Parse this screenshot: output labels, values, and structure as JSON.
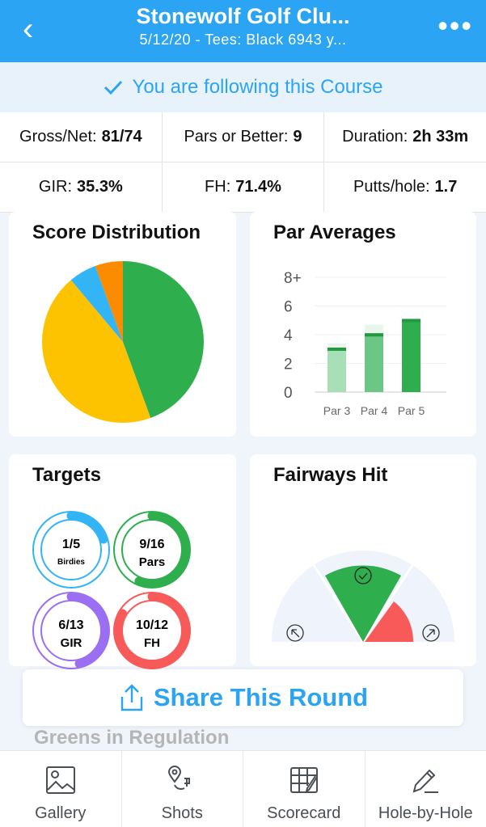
{
  "header": {
    "title": "Stonewolf Golf Clu...",
    "subtitle": "5/12/20 - Tees: Black 6943 y...",
    "back_icon": "chevron-left-icon",
    "more_icon": "ellipsis-icon",
    "color": "#2ba4f3"
  },
  "follow": {
    "text": "You are following this Course",
    "icon": "checkmark-icon"
  },
  "stats": {
    "row1": [
      {
        "label": "Gross/Net:",
        "value": "81/74"
      },
      {
        "label": "Pars or Better:",
        "value": "9"
      },
      {
        "label": "Duration:",
        "value": "2h 33m"
      }
    ],
    "row2": [
      {
        "label": "GIR:",
        "value": "35.3%"
      },
      {
        "label": "FH:",
        "value": "71.4%"
      },
      {
        "label": "Putts/hole:",
        "value": "1.7"
      }
    ]
  },
  "score_distribution": {
    "title": "Score Distribution",
    "chart_data": {
      "type": "pie",
      "slices": [
        {
          "value": 8,
          "color": "#2fae4e"
        },
        {
          "value": 8,
          "color": "#fdc300"
        },
        {
          "value": 1,
          "color": "#33b4f5"
        },
        {
          "value": 1,
          "color": "#fb8c00"
        }
      ]
    }
  },
  "par_averages": {
    "title": "Par Averages",
    "chart_data": {
      "type": "bar",
      "categories": [
        "Par 3",
        "Par 4",
        "Par 5"
      ],
      "values": [
        3.1,
        4.1,
        5.1
      ],
      "upper": [
        3.4,
        4.7,
        5.1
      ],
      "colors": [
        "#a8dfb6",
        "#6bc785",
        "#2fae4e"
      ],
      "yticks": [
        "0",
        "2",
        "4",
        "6",
        "8+"
      ],
      "ylim": [
        0,
        8
      ]
    }
  },
  "targets": {
    "title": "Targets",
    "items": [
      {
        "value": "1/5",
        "label": "Birdies",
        "fraction": 0.2,
        "color": "#33b4f5"
      },
      {
        "value": "9/16",
        "label": "Pars",
        "fraction": 0.5625,
        "color": "#2fae4e"
      },
      {
        "value": "6/13",
        "label": "GIR",
        "fraction": 0.4615,
        "color": "#9b6ff2"
      },
      {
        "value": "10/12",
        "label": "FH",
        "fraction": 0.8333,
        "color": "#f85a5a"
      }
    ]
  },
  "fairways_hit": {
    "title": "Fairways Hit",
    "hit_color": "#2fae4e",
    "miss_right_color": "#f85a5a"
  },
  "share": {
    "label": "Share This Round",
    "icon": "share-icon"
  },
  "ghost_text": "Greens in Regulation",
  "tabs": [
    {
      "label": "Gallery",
      "icon": "image-icon"
    },
    {
      "label": "Shots",
      "icon": "map-pin-icon"
    },
    {
      "label": "Scorecard",
      "icon": "scorecard-icon"
    },
    {
      "label": "Hole-by-Hole",
      "icon": "pencil-icon"
    }
  ]
}
